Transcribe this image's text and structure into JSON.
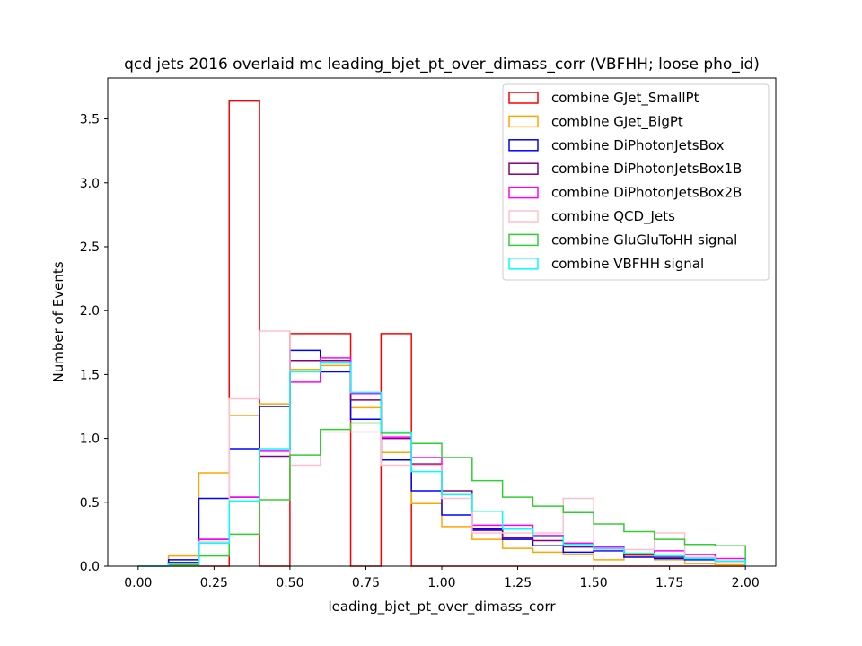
{
  "chart_data": {
    "type": "histogram",
    "title": "qcd jets 2016 overlaid mc leading_bjet_pt_over_dimass_corr (VBFHH; loose pho_id)",
    "xlabel": "leading_bjet_pt_over_dimass_corr",
    "ylabel": "Number of Events",
    "xlim": [
      -0.1,
      2.1
    ],
    "ylim": [
      0,
      3.82
    ],
    "grid": false,
    "legend_position": "top-right",
    "bin_edges": [
      0.0,
      0.1,
      0.2,
      0.3,
      0.4,
      0.5,
      0.6,
      0.7,
      0.8,
      0.9,
      1.0,
      1.1,
      1.2,
      1.3,
      1.4,
      1.5,
      1.6,
      1.7,
      1.8,
      1.9,
      2.0
    ],
    "x_ticks": [
      "0.00",
      "0.25",
      "0.50",
      "0.75",
      "1.00",
      "1.25",
      "1.50",
      "1.75",
      "2.00"
    ],
    "x_tick_values": [
      0.0,
      0.25,
      0.5,
      0.75,
      1.0,
      1.25,
      1.5,
      1.75,
      2.0
    ],
    "y_ticks": [
      "0.0",
      "0.5",
      "1.0",
      "1.5",
      "2.0",
      "2.5",
      "3.0",
      "3.5"
    ],
    "y_tick_values": [
      0.0,
      0.5,
      1.0,
      1.5,
      2.0,
      2.5,
      3.0,
      3.5
    ],
    "series": [
      {
        "name": "combine GJet_SmallPt",
        "color": "#ff0000",
        "values": [
          0,
          0,
          0,
          3.64,
          0,
          1.82,
          1.82,
          0,
          1.82,
          0,
          0,
          0,
          0,
          0,
          0,
          0,
          0,
          0,
          0,
          0
        ]
      },
      {
        "name": "combine GJet_BigPt",
        "color": "#ffa500",
        "values": [
          0,
          0.08,
          0.73,
          1.18,
          1.27,
          1.54,
          1.57,
          1.24,
          0.89,
          0.49,
          0.31,
          0.21,
          0.14,
          0.11,
          0.09,
          0.05,
          0.08,
          0.05,
          0.02,
          0.01
        ]
      },
      {
        "name": "combine DiPhotonJetsBox",
        "color": "#0000ff",
        "values": [
          0,
          0.05,
          0.53,
          0.92,
          1.25,
          1.69,
          1.52,
          1.15,
          0.83,
          0.59,
          0.4,
          0.29,
          0.21,
          0.16,
          0.11,
          0.12,
          0.07,
          0.06,
          0.05,
          0.04
        ]
      },
      {
        "name": "combine DiPhotonJetsBox1B",
        "color": "#800080",
        "values": [
          0,
          0.03,
          0.21,
          0.54,
          0.86,
          1.61,
          1.61,
          1.3,
          1.0,
          0.8,
          0.59,
          0.28,
          0.22,
          0.2,
          0.15,
          0.13,
          0.09,
          0.07,
          0.06,
          0.04
        ]
      },
      {
        "name": "combine DiPhotonJetsBox2B",
        "color": "#ff00ff",
        "values": [
          0,
          0.02,
          0.21,
          0.54,
          0.9,
          1.44,
          1.63,
          1.35,
          1.01,
          0.85,
          0.56,
          0.32,
          0.32,
          0.24,
          0.18,
          0.15,
          0.1,
          0.12,
          0.09,
          0.06
        ]
      },
      {
        "name": "combine QCD_Jets",
        "color": "#ffc0cb",
        "values": [
          0,
          0,
          0.19,
          1.31,
          1.84,
          0.79,
          1.05,
          1.05,
          0.79,
          0.79,
          0.53,
          0.26,
          0.26,
          0.26,
          0.53,
          0.13,
          0.13,
          0.26,
          0.07,
          0.03
        ]
      },
      {
        "name": "combine GluGluToHH signal",
        "color": "#32cd32",
        "values": [
          0,
          0.01,
          0.08,
          0.25,
          0.52,
          0.87,
          1.07,
          1.12,
          1.04,
          0.96,
          0.85,
          0.67,
          0.54,
          0.47,
          0.42,
          0.33,
          0.27,
          0.21,
          0.17,
          0.16
        ]
      },
      {
        "name": "combine VBFHH signal",
        "color": "#00ffff",
        "values": [
          0,
          0.02,
          0.18,
          0.51,
          0.92,
          1.52,
          1.59,
          1.36,
          1.05,
          0.74,
          0.56,
          0.43,
          0.29,
          0.23,
          0.17,
          0.14,
          0.1,
          0.08,
          0.06,
          0.04
        ]
      }
    ]
  }
}
